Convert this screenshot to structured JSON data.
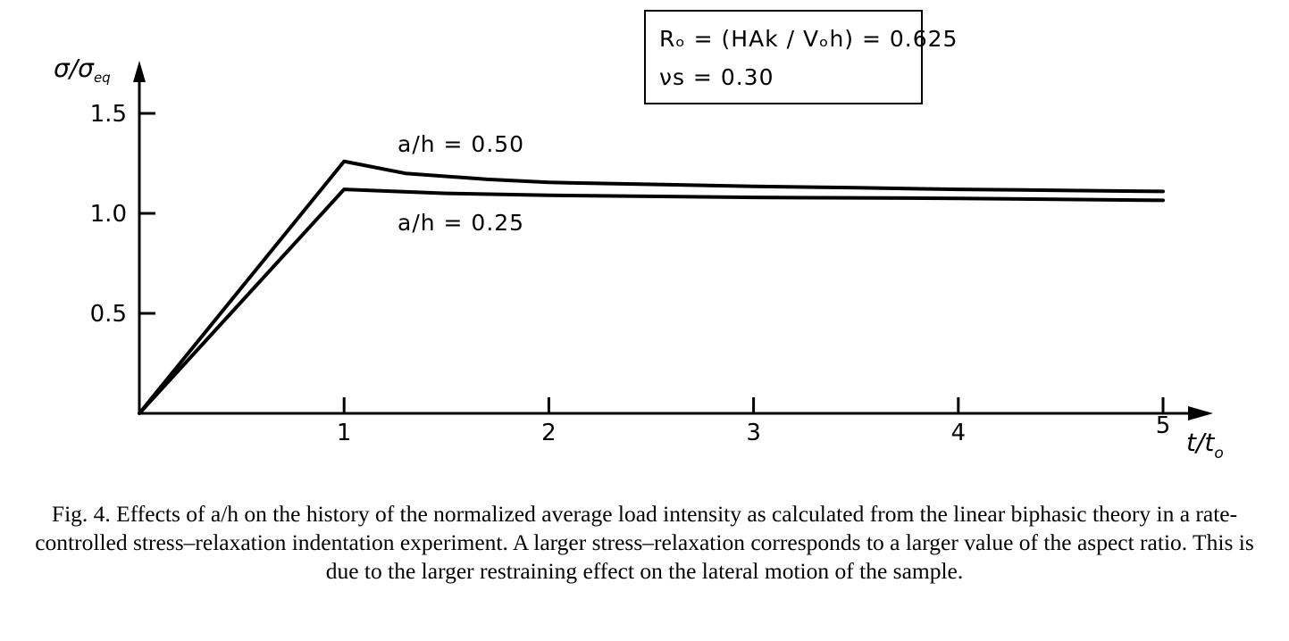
{
  "chart_data": {
    "type": "line",
    "ylabel": "σ/σeq",
    "xlabel": "t/t₀",
    "xlim": [
      0,
      5.2
    ],
    "ylim": [
      0,
      1.55
    ],
    "x_ticks": [
      1,
      2,
      3,
      4,
      5
    ],
    "x_tick_labels": [
      "1",
      "2",
      "3",
      "4",
      "5"
    ],
    "y_ticks": [
      0.5,
      1.0,
      1.5
    ],
    "y_tick_labels": [
      "0.5",
      "1.0",
      "1.5"
    ],
    "grid": false,
    "annotation_box": [
      "Rₒ = (HAk / Vₒh) = 0.625",
      "νs = 0.30"
    ],
    "series": [
      {
        "name": "a/h = 0.50",
        "x": [
          0,
          1,
          1.3,
          1.7,
          2,
          2.5,
          3,
          3.5,
          4,
          4.5,
          5
        ],
        "y": [
          0,
          1.26,
          1.2,
          1.17,
          1.155,
          1.145,
          1.135,
          1.128,
          1.12,
          1.115,
          1.11
        ]
      },
      {
        "name": "a/h = 0.25",
        "x": [
          0,
          1,
          1.5,
          2,
          3,
          4,
          5
        ],
        "y": [
          0,
          1.12,
          1.1,
          1.09,
          1.08,
          1.075,
          1.065
        ]
      }
    ]
  },
  "caption": "Fig. 4. Effects of a/h on the history of the normalized average load intensity as calculated from the linear biphasic theory in a rate-controlled stress–relaxation indentation experiment. A larger stress–relaxation corresponds to a larger value of the aspect ratio. This is due to the larger restraining effect on the lateral motion of the sample."
}
